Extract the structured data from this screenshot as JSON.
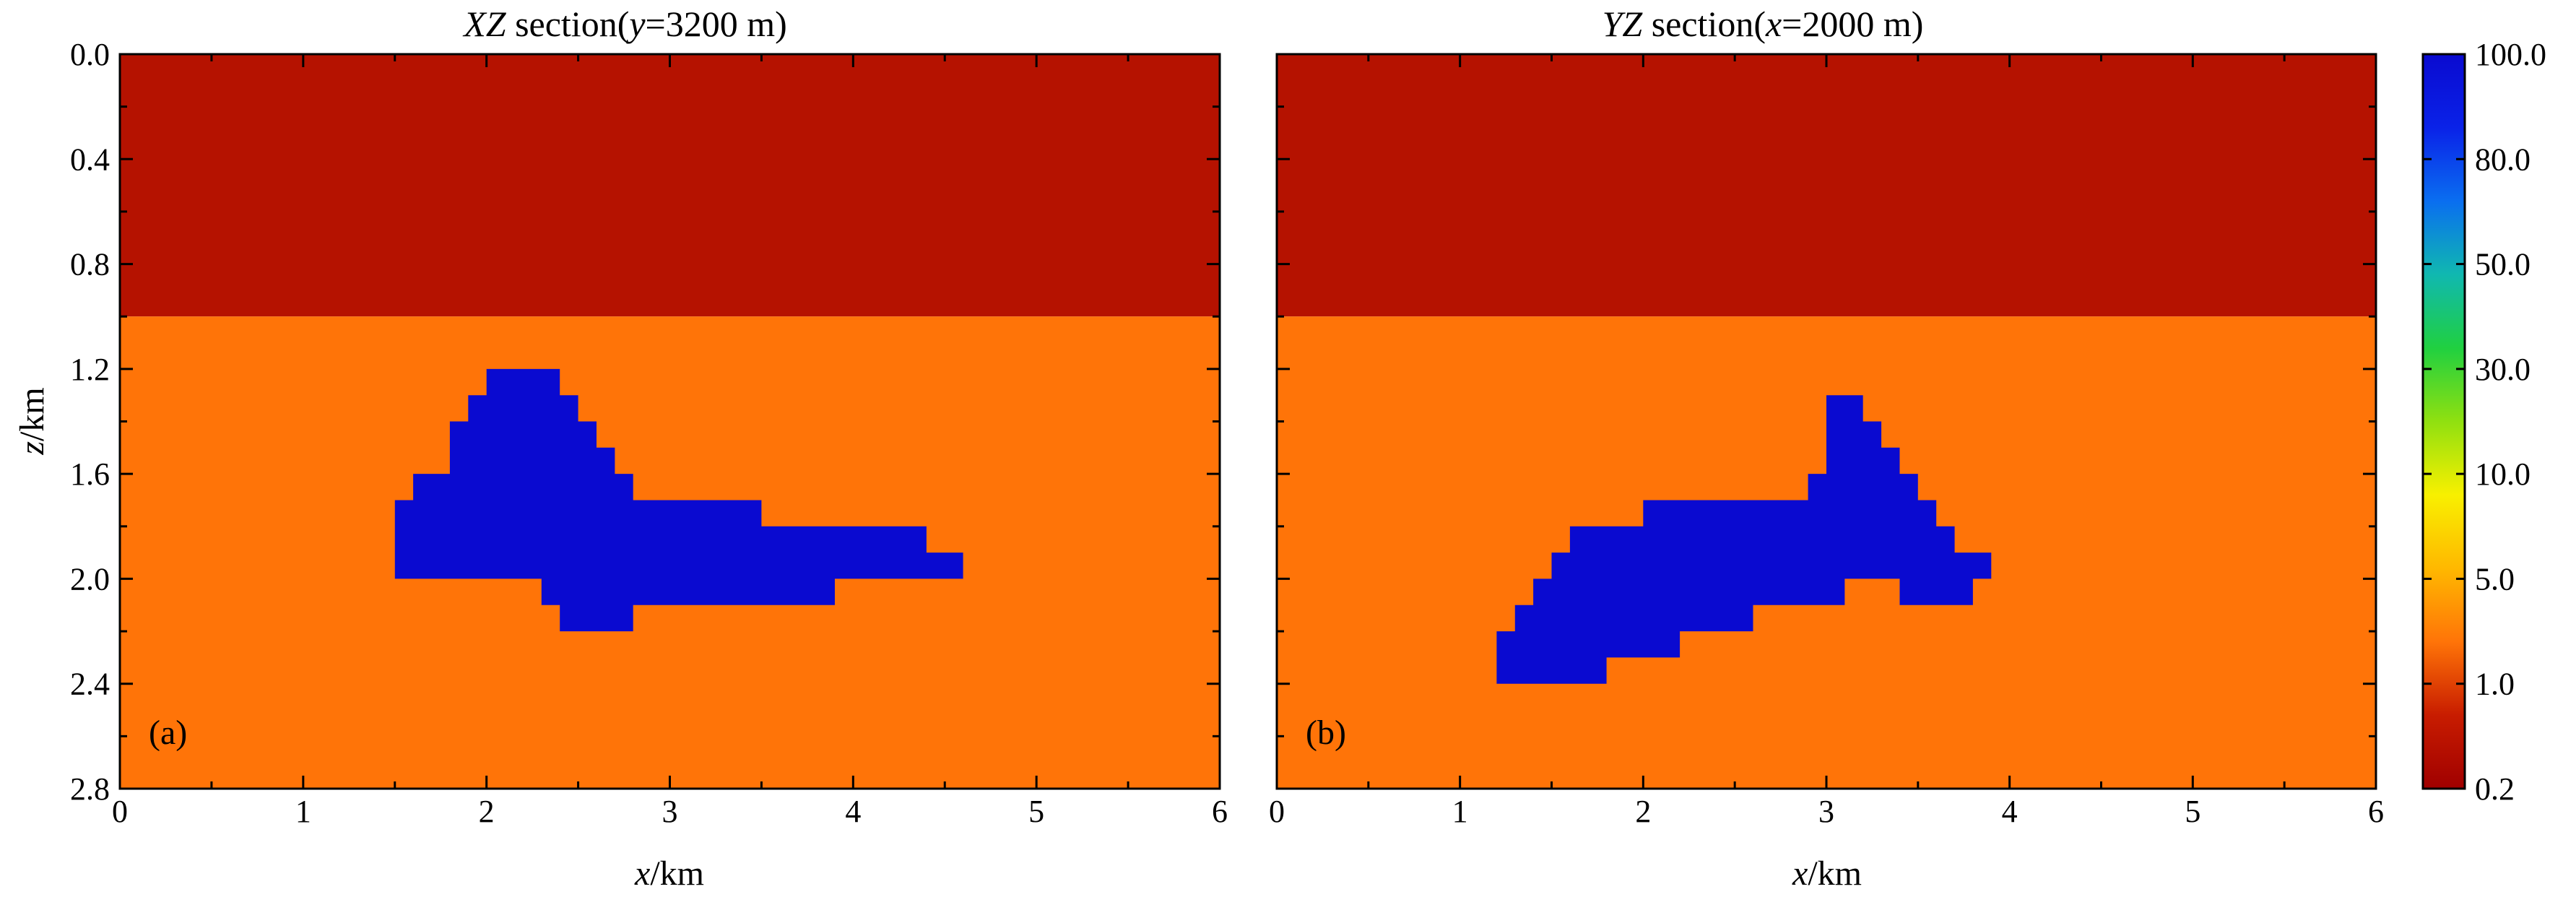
{
  "chart_data": [
    {
      "type": "heatmap",
      "panel": "a",
      "title": {
        "prefix": "XZ",
        "suffix": " section(",
        "var": "y",
        "value": "=3200 m)"
      },
      "panel_label": "(a)",
      "xlabel": {
        "var": "x",
        "unit": "/km"
      },
      "ylabel": {
        "var": "z",
        "unit": "/km"
      },
      "xlim": [
        0,
        6
      ],
      "ylim": [
        2.8,
        0
      ],
      "xticks": [
        "0",
        "1",
        "2",
        "3",
        "4",
        "5",
        "6"
      ],
      "yticks": [
        "0.0",
        "0.4",
        "0.8",
        "1.2",
        "1.6",
        "2.0",
        "2.4",
        "2.8"
      ],
      "background_layers": [
        {
          "z_top": 0.0,
          "z_bottom": 1.0,
          "resistivity": 0.5,
          "color": "#b51200"
        },
        {
          "z_top": 1.0,
          "z_bottom": 2.8,
          "resistivity": 1.0,
          "color": "#ff7408"
        }
      ],
      "anomaly": {
        "resistivity": 100.0,
        "color": "#0a0ad0",
        "polygon_xz": [
          [
            2.0,
            1.2
          ],
          [
            2.4,
            1.2
          ],
          [
            2.4,
            1.3
          ],
          [
            2.5,
            1.3
          ],
          [
            2.5,
            1.4
          ],
          [
            2.6,
            1.4
          ],
          [
            2.6,
            1.5
          ],
          [
            2.7,
            1.5
          ],
          [
            2.7,
            1.6
          ],
          [
            2.8,
            1.6
          ],
          [
            2.8,
            1.7
          ],
          [
            3.5,
            1.7
          ],
          [
            3.5,
            1.8
          ],
          [
            4.4,
            1.8
          ],
          [
            4.4,
            1.9
          ],
          [
            4.6,
            1.9
          ],
          [
            4.6,
            2.0
          ],
          [
            3.9,
            2.0
          ],
          [
            3.9,
            2.1
          ],
          [
            2.8,
            2.1
          ],
          [
            2.8,
            2.2
          ],
          [
            2.4,
            2.2
          ],
          [
            2.4,
            2.1
          ],
          [
            2.3,
            2.1
          ],
          [
            2.3,
            2.0
          ],
          [
            1.5,
            2.0
          ],
          [
            1.5,
            1.7
          ],
          [
            1.6,
            1.7
          ],
          [
            1.6,
            1.6
          ],
          [
            1.8,
            1.6
          ],
          [
            1.8,
            1.4
          ],
          [
            1.9,
            1.4
          ],
          [
            1.9,
            1.3
          ],
          [
            2.0,
            1.3
          ]
        ]
      }
    },
    {
      "type": "heatmap",
      "panel": "b",
      "title": {
        "prefix": "YZ",
        "suffix": " section(",
        "var": "x",
        "value": "=2000 m)"
      },
      "panel_label": "(b)",
      "xlabel": {
        "var": "x",
        "unit": "/km"
      },
      "xlim": [
        0,
        6
      ],
      "ylim": [
        2.8,
        0
      ],
      "xticks": [
        "0",
        "1",
        "2",
        "3",
        "4",
        "5",
        "6"
      ],
      "background_layers": [
        {
          "z_top": 0.0,
          "z_bottom": 1.0,
          "resistivity": 0.5,
          "color": "#b51200"
        },
        {
          "z_top": 1.0,
          "z_bottom": 2.8,
          "resistivity": 1.0,
          "color": "#ff7408"
        }
      ],
      "anomaly": {
        "resistivity": 100.0,
        "color": "#0a0ad0",
        "polygon_xz": [
          [
            3.0,
            1.3
          ],
          [
            3.2,
            1.3
          ],
          [
            3.2,
            1.4
          ],
          [
            3.3,
            1.4
          ],
          [
            3.3,
            1.5
          ],
          [
            3.4,
            1.5
          ],
          [
            3.4,
            1.6
          ],
          [
            3.5,
            1.6
          ],
          [
            3.5,
            1.7
          ],
          [
            3.6,
            1.7
          ],
          [
            3.6,
            1.8
          ],
          [
            3.7,
            1.8
          ],
          [
            3.7,
            1.9
          ],
          [
            3.9,
            1.9
          ],
          [
            3.9,
            2.0
          ],
          [
            3.8,
            2.0
          ],
          [
            3.8,
            2.1
          ],
          [
            3.4,
            2.1
          ],
          [
            3.4,
            2.0
          ],
          [
            3.1,
            2.0
          ],
          [
            3.1,
            2.1
          ],
          [
            2.6,
            2.1
          ],
          [
            2.6,
            2.2
          ],
          [
            2.2,
            2.2
          ],
          [
            2.2,
            2.3
          ],
          [
            1.8,
            2.3
          ],
          [
            1.8,
            2.4
          ],
          [
            1.2,
            2.4
          ],
          [
            1.2,
            2.2
          ],
          [
            1.3,
            2.2
          ],
          [
            1.3,
            2.1
          ],
          [
            1.4,
            2.1
          ],
          [
            1.4,
            2.0
          ],
          [
            1.5,
            2.0
          ],
          [
            1.5,
            1.9
          ],
          [
            1.6,
            1.9
          ],
          [
            1.6,
            1.8
          ],
          [
            2.0,
            1.8
          ],
          [
            2.0,
            1.7
          ],
          [
            2.9,
            1.7
          ],
          [
            2.9,
            1.6
          ],
          [
            3.0,
            1.6
          ]
        ]
      }
    }
  ],
  "colorbar": {
    "tick_labels": [
      "100.0",
      "80.0",
      "50.0",
      "30.0",
      "10.0",
      "5.0",
      "1.0",
      "0.2"
    ],
    "stops": [
      "#0a0ad0",
      "#0a22e8",
      "#0a6ef0",
      "#10b8b0",
      "#20d040",
      "#90e010",
      "#f8f000",
      "#ffb800",
      "#ff7408",
      "#c81c00",
      "#a00000"
    ]
  }
}
